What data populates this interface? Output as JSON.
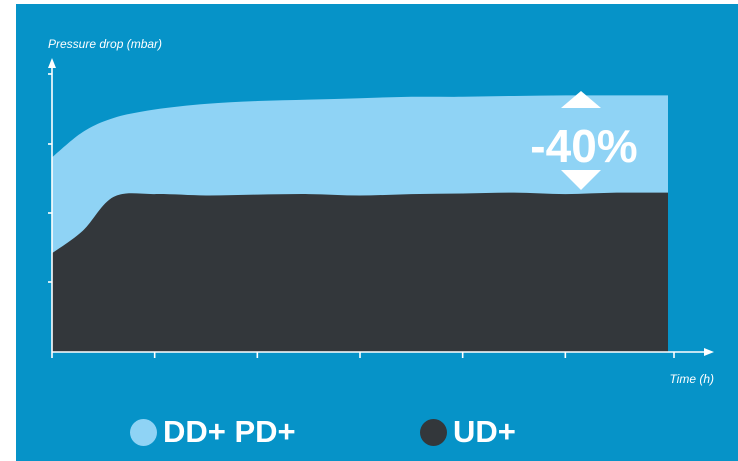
{
  "colors": {
    "background": "#0693c8",
    "light_series": "#8fd3f5",
    "dark_series": "#33373b",
    "axis": "#ffffff"
  },
  "chart_data": {
    "type": "area",
    "title": "",
    "ylabel": "Pressure drop (mbar)",
    "xlabel": "Time (h)",
    "x": [
      0,
      0.3,
      0.6,
      1,
      1.5,
      2,
      2.5,
      3,
      3.5,
      4,
      4.5,
      5,
      5.5,
      6
    ],
    "xlim": [
      0,
      6
    ],
    "ylim": [
      0,
      100
    ],
    "grid": false,
    "legend_position": "bottom",
    "series": [
      {
        "name": "DD+ PD+",
        "color": "#8fd3f5",
        "values": [
          69,
          78,
          83,
          86,
          88,
          89,
          89.5,
          90,
          90.5,
          90.5,
          90.8,
          91,
          91,
          91
        ]
      },
      {
        "name": "UD+",
        "color": "#33373b",
        "values": [
          35,
          43,
          55,
          56,
          55.5,
          55.8,
          56,
          55.5,
          56,
          56.2,
          56.5,
          56,
          56.5,
          56.5
        ]
      }
    ],
    "annotation": {
      "label": "-40%",
      "icon": "double-arrow-icon"
    }
  }
}
